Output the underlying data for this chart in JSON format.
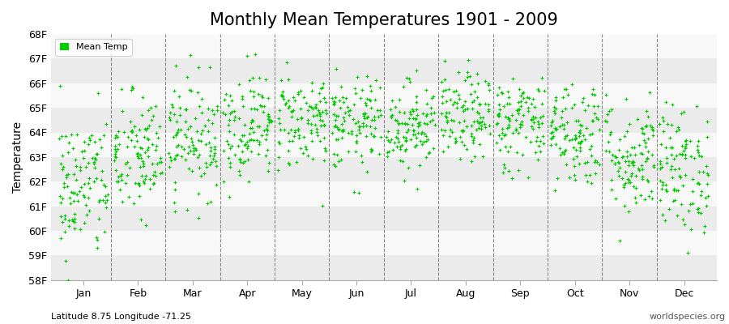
{
  "title": "Monthly Mean Temperatures 1901 - 2009",
  "ylabel": "Temperature",
  "xlabel_bottom_left": "Latitude 8.75 Longitude -71.25",
  "xlabel_bottom_right": "worldspecies.org",
  "legend_label": "Mean Temp",
  "dot_color": "#00cc00",
  "background_color": "#ffffff",
  "plot_bg_color": "#ffffff",
  "band_color_light": "#ebebeb",
  "band_color_dark": "#f8f8f8",
  "ylim": [
    58,
    68
  ],
  "yticks": [
    58,
    59,
    60,
    61,
    62,
    63,
    64,
    65,
    66,
    67,
    68
  ],
  "ytick_labels": [
    "58F",
    "59F",
    "60F",
    "61F",
    "62F",
    "63F",
    "64F",
    "65F",
    "66F",
    "67F",
    "68F"
  ],
  "months": [
    "Jan",
    "Feb",
    "Mar",
    "Apr",
    "May",
    "Jun",
    "Jul",
    "Aug",
    "Sep",
    "Oct",
    "Nov",
    "Dec"
  ],
  "month_centers": [
    1,
    2,
    3,
    4,
    5,
    6,
    7,
    8,
    9,
    10,
    11,
    12
  ],
  "month_boundaries": [
    1.5,
    2.5,
    3.5,
    4.5,
    5.5,
    6.5,
    7.5,
    8.5,
    9.5,
    10.5,
    11.5
  ],
  "num_years": 109,
  "seed": 42,
  "monthly_means": [
    61.8,
    63.0,
    63.8,
    64.3,
    64.5,
    64.3,
    64.3,
    64.6,
    64.4,
    64.0,
    63.0,
    62.5
  ],
  "monthly_stds": [
    1.5,
    1.3,
    1.2,
    1.1,
    1.0,
    0.95,
    0.9,
    0.9,
    1.0,
    1.1,
    1.2,
    1.3
  ],
  "title_fontsize": 15,
  "axis_fontsize": 10,
  "tick_fontsize": 9,
  "dot_size": 8,
  "dot_marker": "+",
  "dashed_color": "#888888",
  "grid_linewidth": 0.8,
  "legend_dot_size": 8
}
